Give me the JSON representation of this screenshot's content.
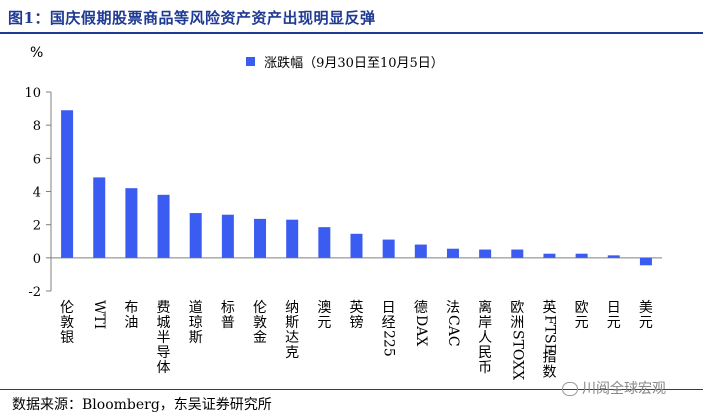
{
  "title": "图1：国庆假期股票商品等风险资产资产出现明显反弹",
  "unit": "%",
  "legend_icon": "square-swatch",
  "watermark_icon": "wechat-icon",
  "colors": {
    "bar": "#3b5cf0",
    "title": "#1f3a93",
    "axis": "#808080"
  },
  "chart_data": {
    "type": "bar",
    "title": "",
    "xlabel": "",
    "ylabel": "%",
    "ylim": [
      -2,
      10
    ],
    "yticks": [
      -2,
      0,
      2,
      4,
      6,
      8,
      10
    ],
    "grid": false,
    "legend_position": "top-center",
    "categories": [
      "伦敦银",
      "WTI",
      "布油",
      "费城半导体",
      "道琼斯",
      "标普",
      "伦敦金",
      "纳斯达克",
      "澳元",
      "英镑",
      "日经225",
      "德DAX",
      "法CAC",
      "离岸人民币",
      "欧洲STOXX",
      "英FTSE指数",
      "欧元",
      "日元",
      "美元"
    ],
    "series": [
      {
        "name": "涨跌幅（9月30日至10月5日）",
        "values": [
          8.9,
          4.85,
          4.2,
          3.8,
          2.7,
          2.6,
          2.35,
          2.3,
          1.85,
          1.45,
          1.1,
          0.8,
          0.55,
          0.5,
          0.5,
          0.25,
          0.25,
          0.15,
          -0.45
        ]
      }
    ]
  },
  "footer": {
    "source": "数据来源：Bloomberg，东吴证券研究所",
    "watermark": "川阅全球宏观"
  }
}
